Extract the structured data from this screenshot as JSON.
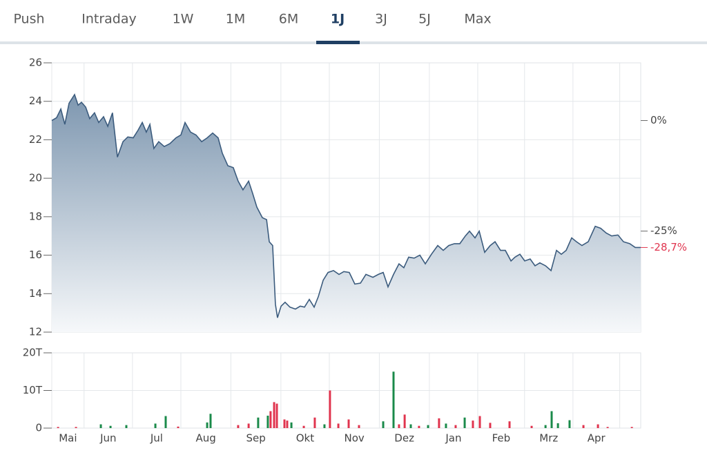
{
  "tabs": {
    "items": [
      "Push",
      "Intraday",
      "1W",
      "1M",
      "6M",
      "1J",
      "3J",
      "5J",
      "Max"
    ],
    "active": 5
  },
  "chart_data": [
    {
      "type": "line",
      "color": "#3b5b7d",
      "x": [
        0,
        3,
        5.6,
        8.1,
        10.7,
        14.1,
        16.3,
        18.4,
        21,
        23.5,
        26.5,
        29.1,
        32.1,
        34.7,
        37.6,
        40.7,
        44.1,
        47.1,
        50.5,
        53.5,
        56.1,
        58.6,
        60.8,
        63.3,
        66.3,
        69.7,
        73.2,
        77,
        80,
        82.6,
        86,
        89.4,
        92.9,
        96.3,
        99.7,
        103.1,
        105.7,
        109.1,
        112.5,
        115.5,
        118.5,
        122,
        124.5,
        127.1,
        130.5,
        133.1,
        134.8,
        136.9,
        138.6,
        139.9,
        142.1,
        144.6,
        147.6,
        151,
        154,
        156.6,
        159.6,
        162.6,
        165.2,
        168.2,
        171.2,
        174.6,
        178,
        181,
        184.4,
        187.8,
        191.3,
        194.7,
        199,
        202.4,
        205.4,
        208.4,
        211.8,
        215.2,
        218.2,
        221.2,
        224.6,
        228.1,
        231.5,
        235.3,
        239.2,
        242.6,
        246,
        249.5,
        252.9,
        256.3,
        258.9,
        262.3,
        264.9,
        268.3,
        271.7,
        274.7,
        278.1,
        281.1,
        284.6,
        287.1,
        290.1,
        293.1,
        296.5,
        299.5,
        302.5,
        306,
        309.4,
        312.8,
        315.8,
        318.8,
        322.2,
        325.2,
        328.6,
        332.5,
        336.8,
        340.2,
        343.6,
        347,
        350.9,
        354.3,
        358.2,
        361.6,
        365
      ],
      "values": [
        23.0,
        23.15,
        23.6,
        22.8,
        23.9,
        24.35,
        23.8,
        23.95,
        23.7,
        23.1,
        23.4,
        22.9,
        23.2,
        22.7,
        23.4,
        21.1,
        21.9,
        22.15,
        22.1,
        22.5,
        22.9,
        22.4,
        22.8,
        21.55,
        21.9,
        21.65,
        21.8,
        22.1,
        22.25,
        22.9,
        22.4,
        22.25,
        21.9,
        22.1,
        22.35,
        22.1,
        21.3,
        20.65,
        20.55,
        19.85,
        19.4,
        19.85,
        19.2,
        18.5,
        17.95,
        17.85,
        16.7,
        16.5,
        13.45,
        12.75,
        13.35,
        13.55,
        13.3,
        13.2,
        13.35,
        13.3,
        13.7,
        13.3,
        13.85,
        14.7,
        15.1,
        15.2,
        15.0,
        15.15,
        15.1,
        14.5,
        14.55,
        15.0,
        14.85,
        15.0,
        15.1,
        14.35,
        15.0,
        15.55,
        15.35,
        15.9,
        15.85,
        16.0,
        15.55,
        16.05,
        16.5,
        16.25,
        16.5,
        16.6,
        16.6,
        17.0,
        17.25,
        16.9,
        17.25,
        16.15,
        16.5,
        16.7,
        16.25,
        16.25,
        15.7,
        15.9,
        16.05,
        15.7,
        15.8,
        15.45,
        15.6,
        15.45,
        15.2,
        16.25,
        16.05,
        16.25,
        16.9,
        16.7,
        16.5,
        16.7,
        17.5,
        17.4,
        17.15,
        17.0,
        17.05,
        16.7,
        16.6,
        16.4,
        16.4
      ],
      "xlim": [
        0,
        365
      ],
      "ylim": [
        12,
        26
      ],
      "yticks": [
        12,
        14,
        16,
        18,
        20,
        22,
        24,
        26
      ],
      "y2lim": [
        -47.83,
        13.04
      ],
      "y2ticks": [
        {
          "value": 0,
          "label": "0%"
        },
        {
          "value": -25,
          "label": "-25%"
        }
      ],
      "last_value": {
        "value": -28.7,
        "label": "-28,7%"
      },
      "grid": true
    },
    {
      "type": "bar",
      "x": [
        3.9,
        15,
        30.4,
        36.4,
        46.2,
        64.2,
        70.6,
        78.3,
        96.3,
        98.4,
        115.5,
        122,
        127.9,
        133.9,
        135.6,
        137.8,
        139.5,
        144.2,
        145.9,
        148.5,
        156.2,
        163,
        169,
        172.4,
        177.6,
        184,
        190.4,
        205.4,
        211.8,
        215.2,
        218.7,
        222.5,
        227.6,
        233.2,
        240,
        244.3,
        250.3,
        255.9,
        261,
        265.3,
        271.7,
        283.7,
        297.4,
        306,
        309.8,
        313.7,
        320.9,
        329.5,
        338.5,
        344.5,
        359.5
      ],
      "values": [
        300,
        300,
        1000,
        600,
        800,
        1200,
        3200,
        400,
        1500,
        3800,
        800,
        1200,
        2800,
        3300,
        4500,
        6900,
        6500,
        2300,
        2000,
        1500,
        600,
        2800,
        1000,
        10000,
        1200,
        2300,
        800,
        1800,
        15000,
        1000,
        3600,
        1000,
        600,
        800,
        2600,
        1200,
        800,
        2800,
        2000,
        3200,
        1400,
        1800,
        600,
        800,
        4500,
        1300,
        2100,
        800,
        1000,
        300,
        300
      ],
      "colors": [
        "#e0344e",
        "#e0344e",
        "#1a8a4a",
        "#1a8a4a",
        "#1a8a4a",
        "#1a8a4a",
        "#1a8a4a",
        "#e0344e",
        "#1a8a4a",
        "#1a8a4a",
        "#e0344e",
        "#e0344e",
        "#1a8a4a",
        "#1a8a4a",
        "#e0344e",
        "#e0344e",
        "#e0344e",
        "#e0344e",
        "#e0344e",
        "#1a8a4a",
        "#e0344e",
        "#e0344e",
        "#1a8a4a",
        "#e0344e",
        "#e0344e",
        "#e0344e",
        "#e0344e",
        "#1a8a4a",
        "#1a8a4a",
        "#e0344e",
        "#e0344e",
        "#1a8a4a",
        "#e0344e",
        "#1a8a4a",
        "#e0344e",
        "#1a8a4a",
        "#e0344e",
        "#1a8a4a",
        "#e0344e",
        "#e0344e",
        "#e0344e",
        "#e0344e",
        "#e0344e",
        "#1a8a4a",
        "#1a8a4a",
        "#1a8a4a",
        "#1a8a4a",
        "#e0344e",
        "#e0344e",
        "#e0344e",
        "#e0344e"
      ],
      "xlim": [
        0,
        365
      ],
      "xticks": [
        {
          "value": 0,
          "label": "Mai"
        },
        {
          "value": 20,
          "label": "Jun"
        },
        {
          "value": 50,
          "label": "Jul"
        },
        {
          "value": 80,
          "label": "Aug"
        },
        {
          "value": 111,
          "label": "Sep"
        },
        {
          "value": 142,
          "label": "Okt"
        },
        {
          "value": 172,
          "label": "Nov"
        },
        {
          "value": 203,
          "label": "Dez"
        },
        {
          "value": 234,
          "label": "Jan"
        },
        {
          "value": 264,
          "label": "Feb"
        },
        {
          "value": 293,
          "label": "Mrz"
        },
        {
          "value": 323,
          "label": "Apr"
        },
        {
          "value": 352,
          "label": null
        }
      ],
      "ylim": [
        0,
        20000
      ],
      "yticks": [
        0,
        {
          "value": 10000,
          "label": "10T"
        },
        {
          "value": 20000,
          "label": "20T"
        }
      ],
      "grid": true
    }
  ]
}
